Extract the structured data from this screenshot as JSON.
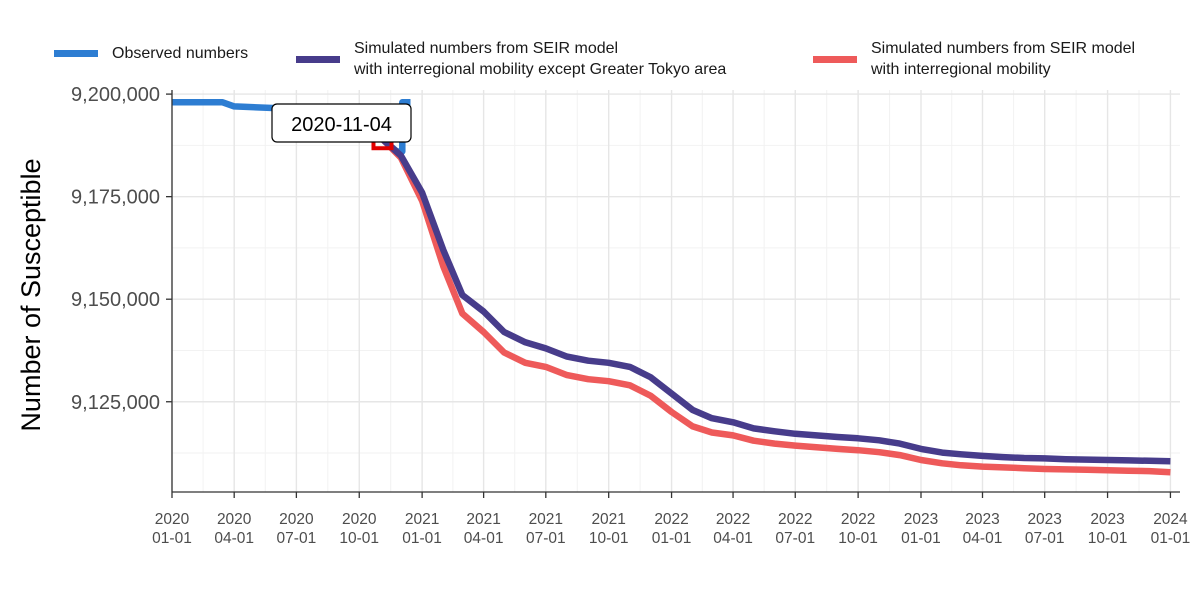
{
  "chart_data": {
    "type": "line",
    "xlabel": "",
    "ylabel": "Number of Susceptible",
    "xlim": [
      "2020-01-01",
      "2024-01-15"
    ],
    "ylim": [
      9103000,
      9201000
    ],
    "grid": true,
    "legend_position": "top",
    "y_ticks": [
      9125000,
      9150000,
      9175000,
      9200000
    ],
    "y_tick_labels": [
      "9,125,000",
      "9,150,000",
      "9,175,000",
      "9,200,000"
    ],
    "x_ticks": [
      "2020-01-01",
      "2020-04-01",
      "2020-07-01",
      "2020-10-01",
      "2021-01-01",
      "2021-04-01",
      "2021-07-01",
      "2021-10-01",
      "2022-01-01",
      "2022-04-01",
      "2022-07-01",
      "2022-10-01",
      "2023-01-01",
      "2023-04-01",
      "2023-07-01",
      "2023-10-01",
      "2024-01-01"
    ],
    "x_tick_labels": [
      [
        "2020",
        "01-01"
      ],
      [
        "2020",
        "04-01"
      ],
      [
        "2020",
        "07-01"
      ],
      [
        "2020",
        "10-01"
      ],
      [
        "2021",
        "01-01"
      ],
      [
        "2021",
        "04-01"
      ],
      [
        "2021",
        "07-01"
      ],
      [
        "2021",
        "10-01"
      ],
      [
        "2022",
        "01-01"
      ],
      [
        "2022",
        "04-01"
      ],
      [
        "2022",
        "07-01"
      ],
      [
        "2022",
        "10-01"
      ],
      [
        "2023",
        "01-01"
      ],
      [
        "2023",
        "04-01"
      ],
      [
        "2023",
        "07-01"
      ],
      [
        "2023",
        "10-01"
      ],
      [
        "2024",
        "01-01"
      ]
    ],
    "annotation": {
      "label": "2020-11-04",
      "x": "2020-11-04",
      "y": 9189000
    },
    "series": [
      {
        "name": "Observed numbers",
        "color": "#2d7dd2",
        "points": [
          [
            "2020-01-01",
            9198000
          ],
          [
            "2020-03-15",
            9198000
          ],
          [
            "2020-04-01",
            9197000
          ],
          [
            "2020-06-15",
            9196500
          ],
          [
            "2020-08-01",
            9195500
          ],
          [
            "2020-09-15",
            9193500
          ],
          [
            "2020-10-15",
            9191000
          ],
          [
            "2020-11-04",
            9189000
          ],
          [
            "2020-11-25",
            9186000
          ],
          [
            "2020-12-03",
            9186000
          ],
          [
            "2020-12-03",
            9198000
          ],
          [
            "2020-12-15",
            9198000
          ]
        ]
      },
      {
        "name": "Simulated numbers from SEIR model\nwith interregional mobility except Greater Tokyo area",
        "color": "#473c8b",
        "points": [
          [
            "2020-11-04",
            9189000
          ],
          [
            "2020-12-01",
            9185000
          ],
          [
            "2021-01-01",
            9176000
          ],
          [
            "2021-02-01",
            9162000
          ],
          [
            "2021-03-01",
            9151000
          ],
          [
            "2021-04-01",
            9147000
          ],
          [
            "2021-05-01",
            9142000
          ],
          [
            "2021-06-01",
            9139500
          ],
          [
            "2021-07-01",
            9138000
          ],
          [
            "2021-08-01",
            9136000
          ],
          [
            "2021-09-01",
            9135000
          ],
          [
            "2021-10-01",
            9134500
          ],
          [
            "2021-11-01",
            9133500
          ],
          [
            "2021-12-01",
            9131000
          ],
          [
            "2022-01-01",
            9127000
          ],
          [
            "2022-02-01",
            9123000
          ],
          [
            "2022-03-01",
            9121000
          ],
          [
            "2022-04-01",
            9120000
          ],
          [
            "2022-05-01",
            9118500
          ],
          [
            "2022-06-01",
            9117800
          ],
          [
            "2022-07-01",
            9117200
          ],
          [
            "2022-08-01",
            9116800
          ],
          [
            "2022-09-01",
            9116400
          ],
          [
            "2022-10-01",
            9116100
          ],
          [
            "2022-11-01",
            9115600
          ],
          [
            "2022-12-01",
            9114800
          ],
          [
            "2023-01-01",
            9113500
          ],
          [
            "2023-02-01",
            9112600
          ],
          [
            "2023-03-01",
            9112200
          ],
          [
            "2023-04-01",
            9111800
          ],
          [
            "2023-05-01",
            9111500
          ],
          [
            "2023-06-01",
            9111300
          ],
          [
            "2023-07-01",
            9111200
          ],
          [
            "2023-08-01",
            9111000
          ],
          [
            "2023-09-01",
            9110900
          ],
          [
            "2023-10-01",
            9110800
          ],
          [
            "2023-11-01",
            9110700
          ],
          [
            "2023-12-01",
            9110600
          ],
          [
            "2024-01-01",
            9110500
          ]
        ]
      },
      {
        "name": "Simulated numbers from SEIR model\nwith interregional mobility",
        "color": "#ee5a5a",
        "points": [
          [
            "2020-11-04",
            9189000
          ],
          [
            "2020-12-01",
            9184500
          ],
          [
            "2021-01-01",
            9174000
          ],
          [
            "2021-02-01",
            9158000
          ],
          [
            "2021-03-01",
            9146500
          ],
          [
            "2021-04-01",
            9142000
          ],
          [
            "2021-05-01",
            9137000
          ],
          [
            "2021-06-01",
            9134500
          ],
          [
            "2021-07-01",
            9133500
          ],
          [
            "2021-08-01",
            9131500
          ],
          [
            "2021-09-01",
            9130500
          ],
          [
            "2021-10-01",
            9130000
          ],
          [
            "2021-11-01",
            9129000
          ],
          [
            "2021-12-01",
            9126500
          ],
          [
            "2022-01-01",
            9122500
          ],
          [
            "2022-02-01",
            9119000
          ],
          [
            "2022-03-01",
            9117500
          ],
          [
            "2022-04-01",
            9116800
          ],
          [
            "2022-05-01",
            9115500
          ],
          [
            "2022-06-01",
            9114800
          ],
          [
            "2022-07-01",
            9114300
          ],
          [
            "2022-08-01",
            9113900
          ],
          [
            "2022-09-01",
            9113500
          ],
          [
            "2022-10-01",
            9113200
          ],
          [
            "2022-11-01",
            9112700
          ],
          [
            "2022-12-01",
            9112000
          ],
          [
            "2023-01-01",
            9110800
          ],
          [
            "2023-02-01",
            9110000
          ],
          [
            "2023-03-01",
            9109500
          ],
          [
            "2023-04-01",
            9109200
          ],
          [
            "2023-05-01",
            9109000
          ],
          [
            "2023-06-01",
            9108800
          ],
          [
            "2023-07-01",
            9108600
          ],
          [
            "2023-08-01",
            9108500
          ],
          [
            "2023-09-01",
            9108400
          ],
          [
            "2023-10-01",
            9108300
          ],
          [
            "2023-11-01",
            9108200
          ],
          [
            "2023-12-01",
            9108100
          ],
          [
            "2024-01-01",
            9107800
          ]
        ]
      }
    ]
  },
  "legend": [
    {
      "label": "Observed numbers",
      "color": "#2d7dd2"
    },
    {
      "label": "Simulated numbers from SEIR model\nwith interregional mobility except Greater Tokyo area",
      "color": "#473c8b"
    },
    {
      "label": "Simulated numbers from SEIR model\nwith interregional mobility",
      "color": "#ee5a5a"
    }
  ],
  "highlight_color": "#e00000"
}
